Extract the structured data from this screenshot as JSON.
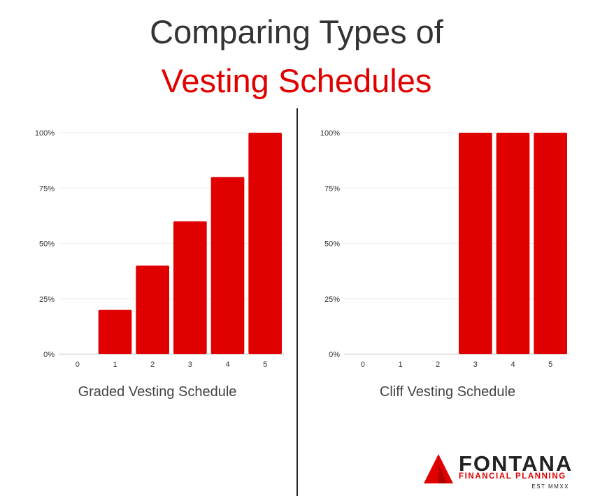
{
  "title": {
    "line1": "Comparing Types of",
    "line2": "Vesting Schedules"
  },
  "colors": {
    "bar": "#e00000",
    "title_dark": "#333333",
    "title_accent": "#e00000",
    "grid": "#eeeeee",
    "axis_text": "#333333"
  },
  "chart_data": [
    {
      "type": "bar",
      "title": "",
      "xlabel": "Graded Vesting Schedule",
      "ylabel": "",
      "categories": [
        "0",
        "1",
        "2",
        "3",
        "4",
        "5"
      ],
      "values": [
        0,
        20,
        40,
        60,
        80,
        100
      ],
      "ylim": [
        0,
        100
      ],
      "yticks": [
        "0%",
        "25%",
        "50%",
        "75%",
        "100%"
      ],
      "grid": true
    },
    {
      "type": "bar",
      "title": "",
      "xlabel": "Cliff Vesting Schedule",
      "ylabel": "",
      "categories": [
        "0",
        "1",
        "2",
        "3",
        "4",
        "5"
      ],
      "values": [
        0,
        0,
        0,
        100,
        100,
        100
      ],
      "ylim": [
        0,
        100
      ],
      "yticks": [
        "0%",
        "25%",
        "50%",
        "75%",
        "100%"
      ],
      "grid": true
    }
  ],
  "logo": {
    "name": "FONTANA",
    "subtitle": "FINANCIAL PLANNING",
    "est": "EST MMXX",
    "icon": "triangle-logo-icon"
  }
}
